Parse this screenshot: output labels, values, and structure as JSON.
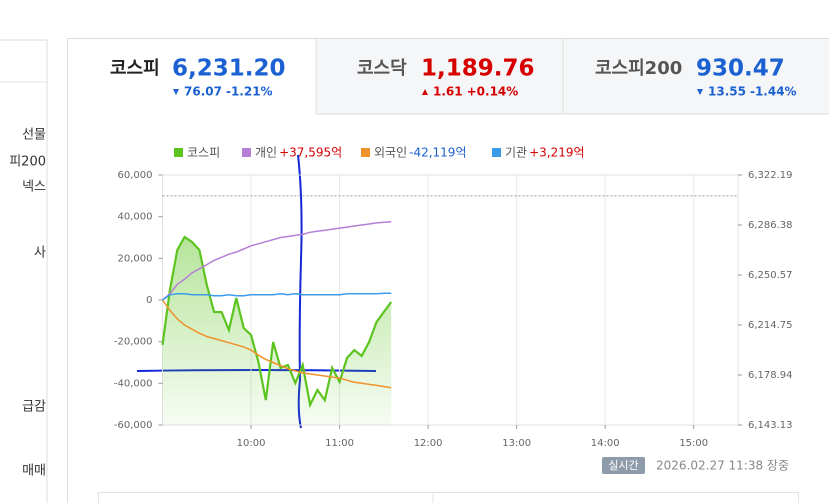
{
  "sidebar": {
    "items": [
      "선물",
      "피200",
      "넥스",
      "사",
      "급감",
      "매매"
    ]
  },
  "tabs": [
    {
      "name": "코스피",
      "value": "6,231.20",
      "change": "76.07",
      "rate": "-1.21%",
      "direction": "down"
    },
    {
      "name": "코스닥",
      "value": "1,189.76",
      "change": "1.61",
      "rate": "+0.14%",
      "direction": "up"
    },
    {
      "name": "코스피200",
      "value": "930.47",
      "change": "13.55",
      "rate": "-1.44%",
      "direction": "down"
    }
  ],
  "chart_data": {
    "type": "line",
    "x": [
      "09:00",
      "09:05",
      "09:10",
      "09:15",
      "09:20",
      "09:25",
      "09:30",
      "09:35",
      "09:40",
      "09:45",
      "09:50",
      "09:55",
      "10:00",
      "10:05",
      "10:10",
      "10:15",
      "10:20",
      "10:25",
      "10:30",
      "10:35",
      "10:40",
      "10:45",
      "10:50",
      "10:55",
      "11:00",
      "11:05",
      "11:10",
      "11:15",
      "11:20",
      "11:25",
      "11:30",
      "11:35"
    ],
    "xlim": [
      "09:00",
      "15:30"
    ],
    "xticks": [
      "10:00",
      "11:00",
      "12:00",
      "13:00",
      "14:00",
      "15:00"
    ],
    "ylim": [
      -60000,
      60000
    ],
    "yticks": [
      {
        "value": 60000,
        "label": "60,000"
      },
      {
        "value": 40000,
        "label": "40,000"
      },
      {
        "value": 20000,
        "label": "20,000"
      },
      0,
      {
        "value": -20000,
        "label": "-20,000"
      },
      {
        "value": -40000,
        "label": "-40,000"
      },
      {
        "value": -60000,
        "label": "-60,000"
      }
    ],
    "y2lim": [
      6143.13,
      6322.19
    ],
    "y2ticks": [
      {
        "value": 6322.19,
        "label": "6,322.19"
      },
      {
        "value": 6286.38,
        "label": "6,286.38"
      },
      {
        "value": 6250.57,
        "label": "6,250.57"
      },
      {
        "value": 6214.75,
        "label": "6,214.75"
      },
      {
        "value": 6178.94,
        "label": "6,178.94"
      },
      {
        "value": 6143.13,
        "label": "6,143.13"
      }
    ],
    "reference_line": 6307.27,
    "series": [
      {
        "name": "코스피",
        "color": "#5cc41f",
        "axis": "y2",
        "area": true,
        "values": [
          6200.4,
          6239.8,
          6268.5,
          6277.8,
          6274.2,
          6268.5,
          6243.4,
          6224.1,
          6224.1,
          6211.2,
          6234.1,
          6212.6,
          6207.6,
          6188.3,
          6161.0,
          6202.6,
          6184.0,
          6186.1,
          6173.2,
          6186.1,
          6157.5,
          6168.2,
          6161.0,
          6184.0,
          6174.0,
          6191.1,
          6196.8,
          6192.6,
          6202.6,
          6216.9,
          6224.1,
          6231.2
        ]
      },
      {
        "name": "개인",
        "color": "#b57fd6",
        "summary": "+37,595억",
        "values": [
          0,
          3000,
          7500,
          10000,
          13000,
          15000,
          17000,
          19000,
          20500,
          22000,
          23000,
          24500,
          26000,
          27000,
          28000,
          29000,
          30000,
          30500,
          31000,
          31500,
          32500,
          33000,
          33500,
          34000,
          34500,
          35000,
          35500,
          36000,
          36500,
          37000,
          37300,
          37595
        ]
      },
      {
        "name": "외국인",
        "color": "#f0922b",
        "summary": "-42,119억",
        "values": [
          0,
          -5000,
          -9000,
          -12000,
          -14000,
          -16000,
          -17500,
          -18500,
          -19500,
          -20500,
          -21500,
          -22500,
          -24000,
          -26500,
          -28500,
          -30000,
          -31500,
          -33000,
          -34000,
          -35000,
          -35500,
          -36000,
          -36500,
          -37000,
          -37500,
          -38500,
          -39500,
          -40000,
          -40500,
          -41000,
          -41500,
          -42119
        ]
      },
      {
        "name": "기관",
        "color": "#3c9be8",
        "summary": "+3,219억",
        "values": [
          0,
          2500,
          3000,
          3000,
          2500,
          2500,
          2500,
          2000,
          2000,
          2500,
          2000,
          2000,
          2500,
          2500,
          2500,
          2500,
          3000,
          2500,
          3000,
          2500,
          2500,
          2500,
          2500,
          2500,
          2500,
          3000,
          3000,
          3000,
          3000,
          3000,
          3200,
          3219
        ]
      }
    ]
  },
  "footer": {
    "badge": "실시간",
    "timestamp": "2026.02.27 11:38 장중"
  }
}
